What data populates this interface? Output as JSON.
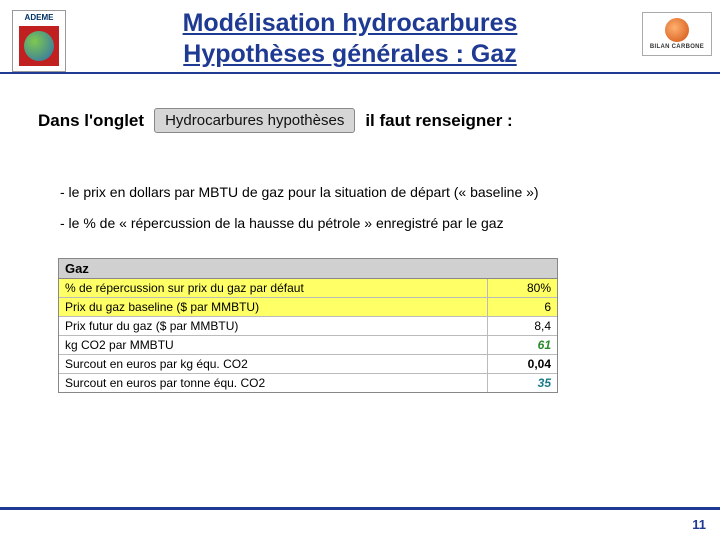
{
  "header": {
    "title_line1": "Modélisation hydrocarbures",
    "title_line2": "Hypothèses générales : Gaz",
    "logo_left": {
      "text": "ADEME"
    },
    "logo_right": {
      "text": "BILAN CARBONE"
    }
  },
  "intro": {
    "prefix": "Dans l'onglet",
    "tab_label": "Hydrocarbures hypothèses",
    "suffix": "il faut renseigner :"
  },
  "bullets": {
    "b1": "- le prix en dollars par MBTU de gaz pour la situation de départ (« baseline »)",
    "b2": "- le % de « répercussion de la hausse du pétrole » enregistré par le gaz"
  },
  "table": {
    "header": "Gaz",
    "rows": [
      {
        "label": "% de répercussion sur prix du gaz par défaut",
        "value": "80%",
        "highlight": true,
        "style": "plain"
      },
      {
        "label": "Prix du gaz baseline ($ par MMBTU)",
        "value": "6",
        "highlight": true,
        "style": "plain"
      },
      {
        "label": "Prix futur du gaz ($ par MMBTU)",
        "value": "8,4",
        "highlight": false,
        "style": "plain"
      },
      {
        "label": "kg CO2 par MMBTU",
        "value": "61",
        "highlight": false,
        "style": "green"
      },
      {
        "label": "Surcout en euros par kg équ. CO2",
        "value": "0,04",
        "highlight": false,
        "style": "plain-bold"
      },
      {
        "label": "Surcout en euros par tonne équ. CO2",
        "value": "35",
        "highlight": false,
        "style": "teal"
      }
    ]
  },
  "footer": {
    "page": "11"
  },
  "colors": {
    "accent": "#1f3a93",
    "highlight_bg": "#ffff66",
    "tab_bg": "#d6d6d6",
    "green": "#2a8a2a",
    "teal": "#1a7a8a"
  }
}
